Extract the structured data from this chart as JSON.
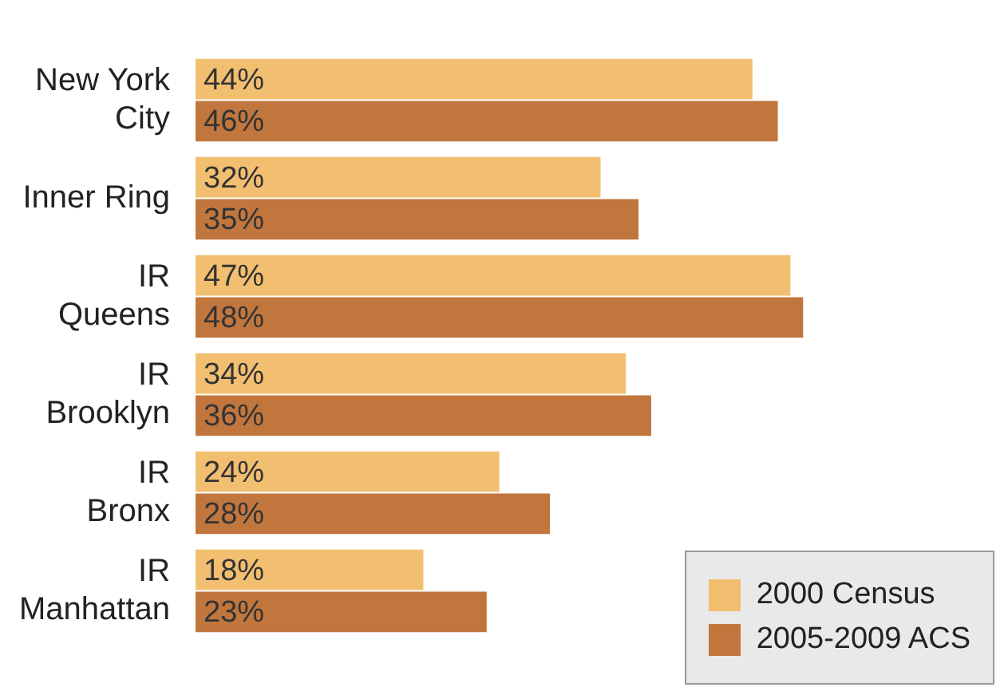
{
  "chart_data": {
    "type": "bar",
    "orientation": "horizontal",
    "categories": [
      "New York\nCity",
      "Inner Ring",
      "IR\nQueens",
      "IR\nBrooklyn",
      "IR\nBronx",
      "IR\nManhattan"
    ],
    "series": [
      {
        "name": "2000 Census",
        "color": "#f2bf70",
        "values": [
          44,
          32,
          47,
          34,
          24,
          18
        ],
        "value_labels": [
          "44%",
          "32%",
          "47%",
          "34%",
          "24%",
          "18%"
        ]
      },
      {
        "name": "2005-2009 ACS",
        "color": "#c1763e",
        "values": [
          46,
          35,
          48,
          36,
          28,
          23
        ],
        "value_labels": [
          "46%",
          "35%",
          "48%",
          "36%",
          "28%",
          "23%"
        ]
      }
    ],
    "legend": "bottom right"
  }
}
